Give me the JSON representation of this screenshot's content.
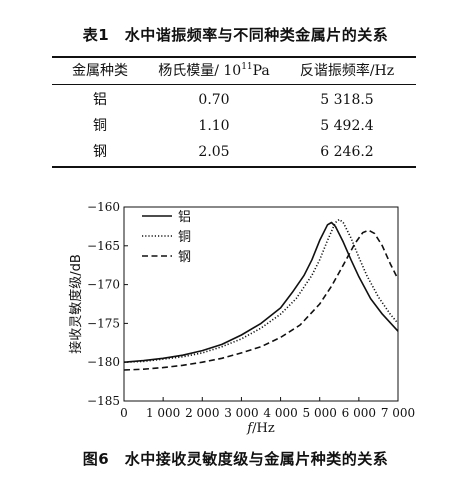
{
  "table": {
    "caption": "表1　水中谐振频率与不同种类金属片的关系",
    "headers": {
      "metal": "金属种类",
      "modulus_text": "杨氏模量/ 10",
      "modulus_exp": "11",
      "modulus_unit": "Pa",
      "frequency": "反谐振频率/Hz"
    },
    "rows": [
      {
        "metal": "铝",
        "modulus": "0.70",
        "frequency": "5 318.5"
      },
      {
        "metal": "铜",
        "modulus": "1.10",
        "frequency": "5 492.4"
      },
      {
        "metal": "钢",
        "modulus": "2.05",
        "frequency": "6 246.2"
      }
    ]
  },
  "figure": {
    "caption": "图6　水中接收灵敏度级与金属片种类的关系"
  },
  "chart_data": {
    "type": "line",
    "ylabel": "接收灵敏度级/dB",
    "xlabel_italic": "f",
    "xlabel_rest": "/Hz",
    "xlim": [
      0,
      7000
    ],
    "ylim": [
      -185,
      -160
    ],
    "xticks": [
      0,
      1000,
      2000,
      3000,
      4000,
      5000,
      6000,
      7000
    ],
    "xtick_labels": [
      "0",
      "1 000",
      "2 000",
      "3 000",
      "4 000",
      "5 000",
      "6 000",
      "7 000"
    ],
    "yticks": [
      -160,
      -165,
      -170,
      -175,
      -180,
      -185
    ],
    "ytick_labels": [
      "−160",
      "−165",
      "−170",
      "−175",
      "−180",
      "−185"
    ],
    "grid": false,
    "legend_position": "top-center",
    "series": [
      {
        "name": "铝",
        "style": "solid",
        "color": "#111111",
        "x": [
          0,
          500,
          1000,
          1500,
          2000,
          2500,
          3000,
          3500,
          4000,
          4300,
          4600,
          4800,
          5000,
          5200,
          5300,
          5400,
          5600,
          5800,
          6000,
          6300,
          6600,
          7000
        ],
        "y": [
          -180.0,
          -179.8,
          -179.5,
          -179.1,
          -178.5,
          -177.7,
          -176.5,
          -175.0,
          -173.0,
          -171.0,
          -168.8,
          -166.8,
          -164.3,
          -162.3,
          -162.0,
          -162.5,
          -164.5,
          -166.8,
          -169.0,
          -171.8,
          -173.8,
          -176.0
        ]
      },
      {
        "name": "铜",
        "style": "dotted",
        "color": "#111111",
        "x": [
          0,
          500,
          1000,
          1500,
          2000,
          2500,
          3000,
          3500,
          4000,
          4400,
          4800,
          5000,
          5200,
          5400,
          5500,
          5600,
          5800,
          6000,
          6200,
          6500,
          6800,
          7000
        ],
        "y": [
          -180.0,
          -179.9,
          -179.6,
          -179.3,
          -178.8,
          -178.0,
          -177.0,
          -175.6,
          -173.8,
          -171.8,
          -168.8,
          -166.8,
          -164.3,
          -162.0,
          -161.6,
          -162.0,
          -164.0,
          -166.5,
          -168.8,
          -171.6,
          -173.8,
          -175.0
        ]
      },
      {
        "name": "钢",
        "style": "dashed",
        "color": "#111111",
        "x": [
          0,
          500,
          1000,
          1500,
          2000,
          2500,
          3000,
          3500,
          4000,
          4500,
          5000,
          5300,
          5600,
          5900,
          6100,
          6250,
          6400,
          6600,
          6800,
          7000
        ],
        "y": [
          -181.0,
          -180.9,
          -180.7,
          -180.4,
          -180.0,
          -179.5,
          -178.8,
          -178.0,
          -176.8,
          -175.2,
          -172.5,
          -170.2,
          -167.5,
          -164.7,
          -163.3,
          -163.0,
          -163.4,
          -165.0,
          -167.3,
          -169.3
        ]
      }
    ]
  }
}
